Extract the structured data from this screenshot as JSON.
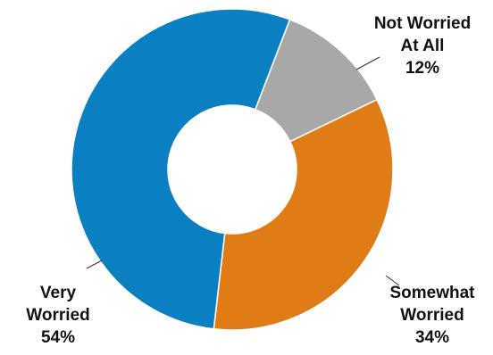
{
  "chart_data": {
    "type": "pie",
    "variant": "donut",
    "slices": [
      {
        "label_lines": [
          "Not Worried",
          "At All"
        ],
        "value": 12,
        "value_label": "12%",
        "color": "#a8a8a8"
      },
      {
        "label_lines": [
          "Somewhat",
          "Worried"
        ],
        "value": 34,
        "value_label": "34%",
        "color": "#e07c16"
      },
      {
        "label_lines": [
          "Very",
          "Worried"
        ],
        "value": 54,
        "value_label": "54%",
        "color": "#0a80c2"
      }
    ],
    "start_angle_deg": 21,
    "direction": "clockwise",
    "legend": "none"
  }
}
